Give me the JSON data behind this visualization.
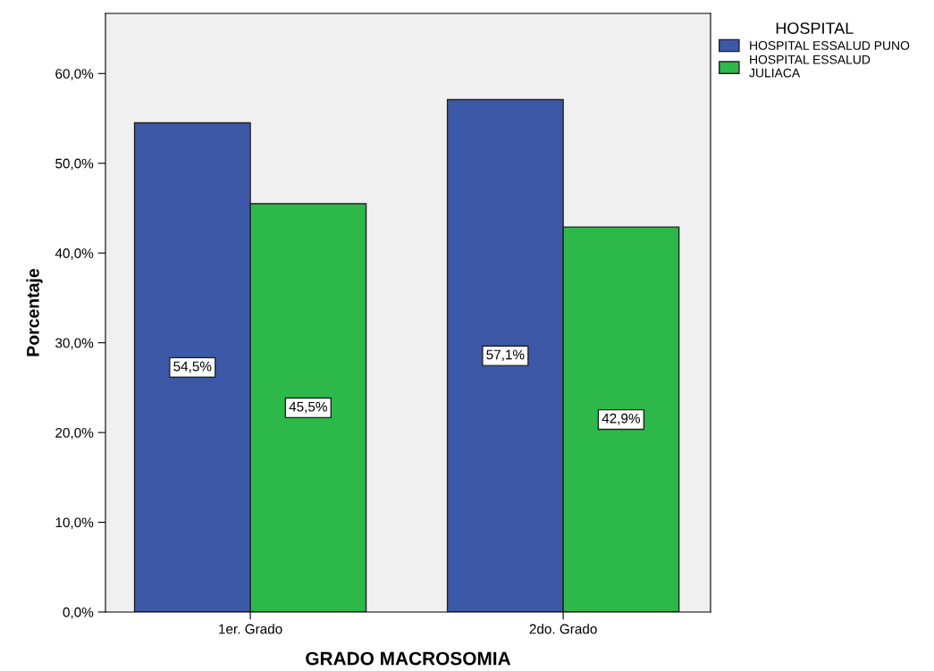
{
  "chart_data": {
    "type": "bar",
    "xlabel": "GRADO MACROSOMIA",
    "ylabel": "Porcentaje",
    "legend_title": "HOSPITAL",
    "legend": "top right",
    "grid": false,
    "categories": [
      "1er. Grado",
      "2do. Grado"
    ],
    "series": [
      {
        "name": "HOSPITAL ESSALUD PUNO",
        "color": "#3e58a8",
        "values": [
          54.5,
          57.1
        ],
        "value_labels": [
          "54,5%",
          "57,1%"
        ]
      },
      {
        "name": "HOSPITAL ESSALUD\nJULIACA",
        "color": "#2db84a",
        "values": [
          45.5,
          42.9
        ],
        "value_labels": [
          "45,5%",
          "42,9%"
        ]
      }
    ],
    "ylim": [
      0,
      66.7
    ],
    "yticks": [
      {
        "value": 0,
        "label": "0,0%"
      },
      {
        "value": 10,
        "label": "10,0%"
      },
      {
        "value": 20,
        "label": "20,0%"
      },
      {
        "value": 30,
        "label": "30,0%"
      },
      {
        "value": 40,
        "label": "40,0%"
      },
      {
        "value": 50,
        "label": "50,0%"
      },
      {
        "value": 60,
        "label": "60,0%"
      }
    ]
  }
}
